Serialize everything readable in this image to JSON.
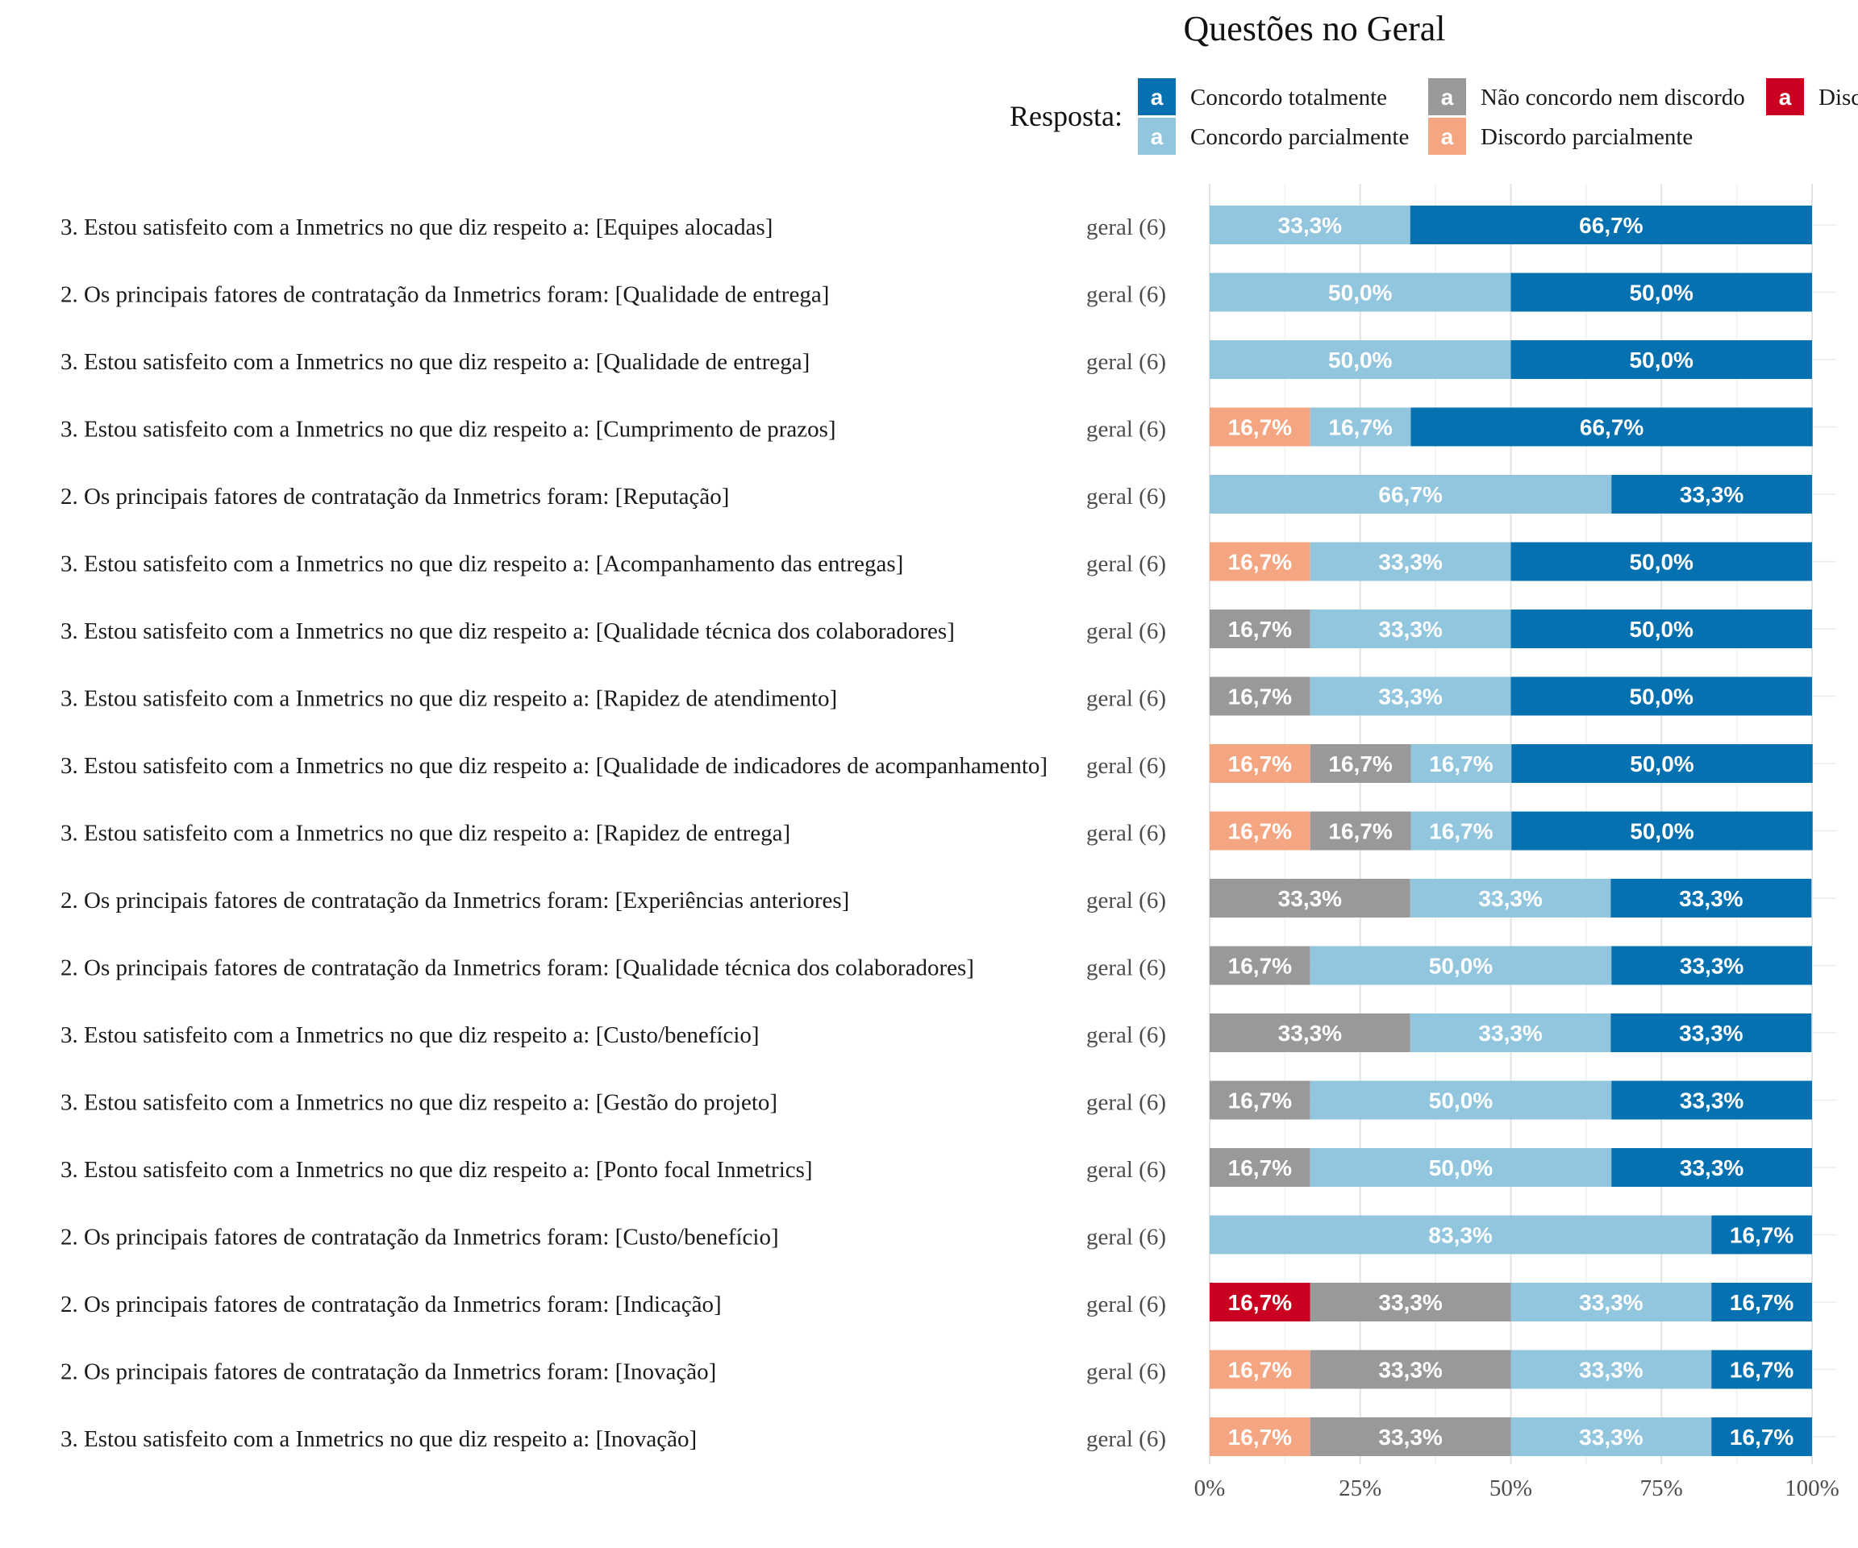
{
  "chart_data": {
    "type": "bar",
    "orientation": "horizontal",
    "stacked": true,
    "title": "Questões no Geral",
    "legend": {
      "title": "Resposta:",
      "position": "top",
      "key_glyph": "a",
      "entries": [
        {
          "label": "Concordo totalmente",
          "color": "#0571b0"
        },
        {
          "label": "Concordo parcialmente",
          "color": "#92c5de"
        },
        {
          "label": "Não concordo nem discordo",
          "color": "#999999"
        },
        {
          "label": "Discordo parcialmente",
          "color": "#f4a582"
        },
        {
          "label": "Disc",
          "color": "#ca0020"
        }
      ]
    },
    "group_label": "geral (6)",
    "xlim": [
      0,
      100
    ],
    "x_ticks": [
      "0%",
      "25%",
      "50%",
      "75%",
      "100%"
    ],
    "grid": true,
    "colors": {
      "Discordo totalmente": "#ca0020",
      "Discordo parcialmente": "#f4a582",
      "Não concordo nem discordo": "#999999",
      "Concordo parcialmente": "#92c5de",
      "Concordo totalmente": "#0571b0"
    },
    "rows": [
      {
        "label": "3. Estou satisfeito com a Inmetrics no que diz respeito a: [Equipes alocadas]",
        "segments": [
          {
            "cat": "Concordo parcialmente",
            "value": 33.3,
            "text": "33,3%"
          },
          {
            "cat": "Concordo totalmente",
            "value": 66.7,
            "text": "66,7%"
          }
        ]
      },
      {
        "label": "2. Os principais fatores de contratação da Inmetrics foram: [Qualidade de entrega]",
        "segments": [
          {
            "cat": "Concordo parcialmente",
            "value": 50.0,
            "text": "50,0%"
          },
          {
            "cat": "Concordo totalmente",
            "value": 50.0,
            "text": "50,0%"
          }
        ]
      },
      {
        "label": "3. Estou satisfeito com a Inmetrics no que diz respeito a: [Qualidade de entrega]",
        "segments": [
          {
            "cat": "Concordo parcialmente",
            "value": 50.0,
            "text": "50,0%"
          },
          {
            "cat": "Concordo totalmente",
            "value": 50.0,
            "text": "50,0%"
          }
        ]
      },
      {
        "label": "3. Estou satisfeito com a Inmetrics no que diz respeito a: [Cumprimento de prazos]",
        "segments": [
          {
            "cat": "Discordo parcialmente",
            "value": 16.7,
            "text": "16,7%"
          },
          {
            "cat": "Concordo parcialmente",
            "value": 16.7,
            "text": "16,7%"
          },
          {
            "cat": "Concordo totalmente",
            "value": 66.7,
            "text": "66,7%"
          }
        ]
      },
      {
        "label": "2. Os principais fatores de contratação da Inmetrics foram: [Reputação]",
        "segments": [
          {
            "cat": "Concordo parcialmente",
            "value": 66.7,
            "text": "66,7%"
          },
          {
            "cat": "Concordo totalmente",
            "value": 33.3,
            "text": "33,3%"
          }
        ]
      },
      {
        "label": "3. Estou satisfeito com a Inmetrics no que diz respeito a: [Acompanhamento das entregas]",
        "segments": [
          {
            "cat": "Discordo parcialmente",
            "value": 16.7,
            "text": "16,7%"
          },
          {
            "cat": "Concordo parcialmente",
            "value": 33.3,
            "text": "33,3%"
          },
          {
            "cat": "Concordo totalmente",
            "value": 50.0,
            "text": "50,0%"
          }
        ]
      },
      {
        "label": "3. Estou satisfeito com a Inmetrics no que diz respeito a: [Qualidade técnica dos colaboradores]",
        "segments": [
          {
            "cat": "Não concordo nem discordo",
            "value": 16.7,
            "text": "16,7%"
          },
          {
            "cat": "Concordo parcialmente",
            "value": 33.3,
            "text": "33,3%"
          },
          {
            "cat": "Concordo totalmente",
            "value": 50.0,
            "text": "50,0%"
          }
        ]
      },
      {
        "label": "3. Estou satisfeito com a Inmetrics no que diz respeito a: [Rapidez de atendimento]",
        "segments": [
          {
            "cat": "Não concordo nem discordo",
            "value": 16.7,
            "text": "16,7%"
          },
          {
            "cat": "Concordo parcialmente",
            "value": 33.3,
            "text": "33,3%"
          },
          {
            "cat": "Concordo totalmente",
            "value": 50.0,
            "text": "50,0%"
          }
        ]
      },
      {
        "label": "3. Estou satisfeito com a Inmetrics no que diz respeito a: [Qualidade de indicadores de acompanhamento]",
        "segments": [
          {
            "cat": "Discordo parcialmente",
            "value": 16.7,
            "text": "16,7%"
          },
          {
            "cat": "Não concordo nem discordo",
            "value": 16.7,
            "text": "16,7%"
          },
          {
            "cat": "Concordo parcialmente",
            "value": 16.7,
            "text": "16,7%"
          },
          {
            "cat": "Concordo totalmente",
            "value": 50.0,
            "text": "50,0%"
          }
        ]
      },
      {
        "label": "3. Estou satisfeito com a Inmetrics no que diz respeito a: [Rapidez de entrega]",
        "segments": [
          {
            "cat": "Discordo parcialmente",
            "value": 16.7,
            "text": "16,7%"
          },
          {
            "cat": "Não concordo nem discordo",
            "value": 16.7,
            "text": "16,7%"
          },
          {
            "cat": "Concordo parcialmente",
            "value": 16.7,
            "text": "16,7%"
          },
          {
            "cat": "Concordo totalmente",
            "value": 50.0,
            "text": "50,0%"
          }
        ]
      },
      {
        "label": "2. Os principais fatores de contratação da Inmetrics foram: [Experiências anteriores]",
        "segments": [
          {
            "cat": "Não concordo nem discordo",
            "value": 33.3,
            "text": "33,3%"
          },
          {
            "cat": "Concordo parcialmente",
            "value": 33.3,
            "text": "33,3%"
          },
          {
            "cat": "Concordo totalmente",
            "value": 33.3,
            "text": "33,3%"
          }
        ]
      },
      {
        "label": "2. Os principais fatores de contratação da Inmetrics foram: [Qualidade técnica dos colaboradores]",
        "segments": [
          {
            "cat": "Não concordo nem discordo",
            "value": 16.7,
            "text": "16,7%"
          },
          {
            "cat": "Concordo parcialmente",
            "value": 50.0,
            "text": "50,0%"
          },
          {
            "cat": "Concordo totalmente",
            "value": 33.3,
            "text": "33,3%"
          }
        ]
      },
      {
        "label": "3. Estou satisfeito com a Inmetrics no que diz respeito a: [Custo/benefício]",
        "segments": [
          {
            "cat": "Não concordo nem discordo",
            "value": 33.3,
            "text": "33,3%"
          },
          {
            "cat": "Concordo parcialmente",
            "value": 33.3,
            "text": "33,3%"
          },
          {
            "cat": "Concordo totalmente",
            "value": 33.3,
            "text": "33,3%"
          }
        ]
      },
      {
        "label": "3. Estou satisfeito com a Inmetrics no que diz respeito a: [Gestão do projeto]",
        "segments": [
          {
            "cat": "Não concordo nem discordo",
            "value": 16.7,
            "text": "16,7%"
          },
          {
            "cat": "Concordo parcialmente",
            "value": 50.0,
            "text": "50,0%"
          },
          {
            "cat": "Concordo totalmente",
            "value": 33.3,
            "text": "33,3%"
          }
        ]
      },
      {
        "label": "3. Estou satisfeito com a Inmetrics no que diz respeito a: [Ponto focal Inmetrics]",
        "segments": [
          {
            "cat": "Não concordo nem discordo",
            "value": 16.7,
            "text": "16,7%"
          },
          {
            "cat": "Concordo parcialmente",
            "value": 50.0,
            "text": "50,0%"
          },
          {
            "cat": "Concordo totalmente",
            "value": 33.3,
            "text": "33,3%"
          }
        ]
      },
      {
        "label": "2. Os principais fatores de contratação da Inmetrics foram: [Custo/benefício]",
        "segments": [
          {
            "cat": "Concordo parcialmente",
            "value": 83.3,
            "text": "83,3%"
          },
          {
            "cat": "Concordo totalmente",
            "value": 16.7,
            "text": "16,7%"
          }
        ]
      },
      {
        "label": "2. Os principais fatores de contratação da Inmetrics foram: [Indicação]",
        "segments": [
          {
            "cat": "Discordo totalmente",
            "value": 16.7,
            "text": "16,7%"
          },
          {
            "cat": "Não concordo nem discordo",
            "value": 33.3,
            "text": "33,3%"
          },
          {
            "cat": "Concordo parcialmente",
            "value": 33.3,
            "text": "33,3%"
          },
          {
            "cat": "Concordo totalmente",
            "value": 16.7,
            "text": "16,7%"
          }
        ]
      },
      {
        "label": "2. Os principais fatores de contratação da Inmetrics foram: [Inovação]",
        "segments": [
          {
            "cat": "Discordo parcialmente",
            "value": 16.7,
            "text": "16,7%"
          },
          {
            "cat": "Não concordo nem discordo",
            "value": 33.3,
            "text": "33,3%"
          },
          {
            "cat": "Concordo parcialmente",
            "value": 33.3,
            "text": "33,3%"
          },
          {
            "cat": "Concordo totalmente",
            "value": 16.7,
            "text": "16,7%"
          }
        ]
      },
      {
        "label": "3. Estou satisfeito com a Inmetrics no que diz respeito a: [Inovação]",
        "segments": [
          {
            "cat": "Discordo parcialmente",
            "value": 16.7,
            "text": "16,7%"
          },
          {
            "cat": "Não concordo nem discordo",
            "value": 33.3,
            "text": "33,3%"
          },
          {
            "cat": "Concordo parcialmente",
            "value": 33.3,
            "text": "33,3%"
          },
          {
            "cat": "Concordo totalmente",
            "value": 16.7,
            "text": "16,7%"
          }
        ]
      }
    ]
  }
}
